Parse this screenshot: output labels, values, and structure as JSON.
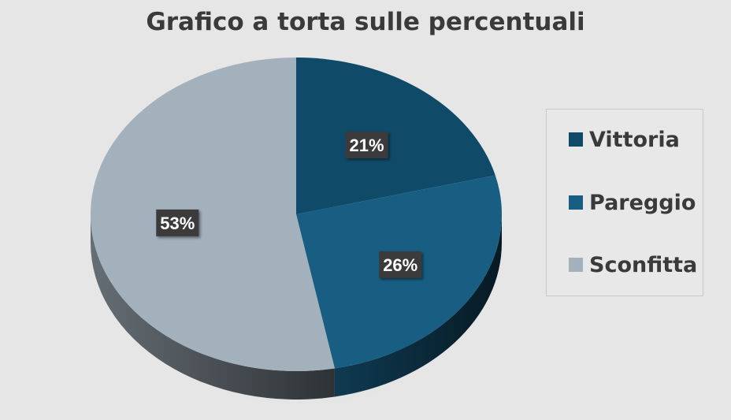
{
  "chart_data": {
    "type": "pie",
    "title": "Grafico a torta sulle percentuali",
    "categories": [
      "Vittoria",
      "Pareggio",
      "Sconfitta"
    ],
    "values": [
      21,
      26,
      53
    ],
    "data_labels": [
      "21%",
      "26%",
      "53%"
    ],
    "colors": [
      "#0f4a68",
      "#185e82",
      "#a3b1bd"
    ],
    "legend_position": "right",
    "style": "3d"
  }
}
